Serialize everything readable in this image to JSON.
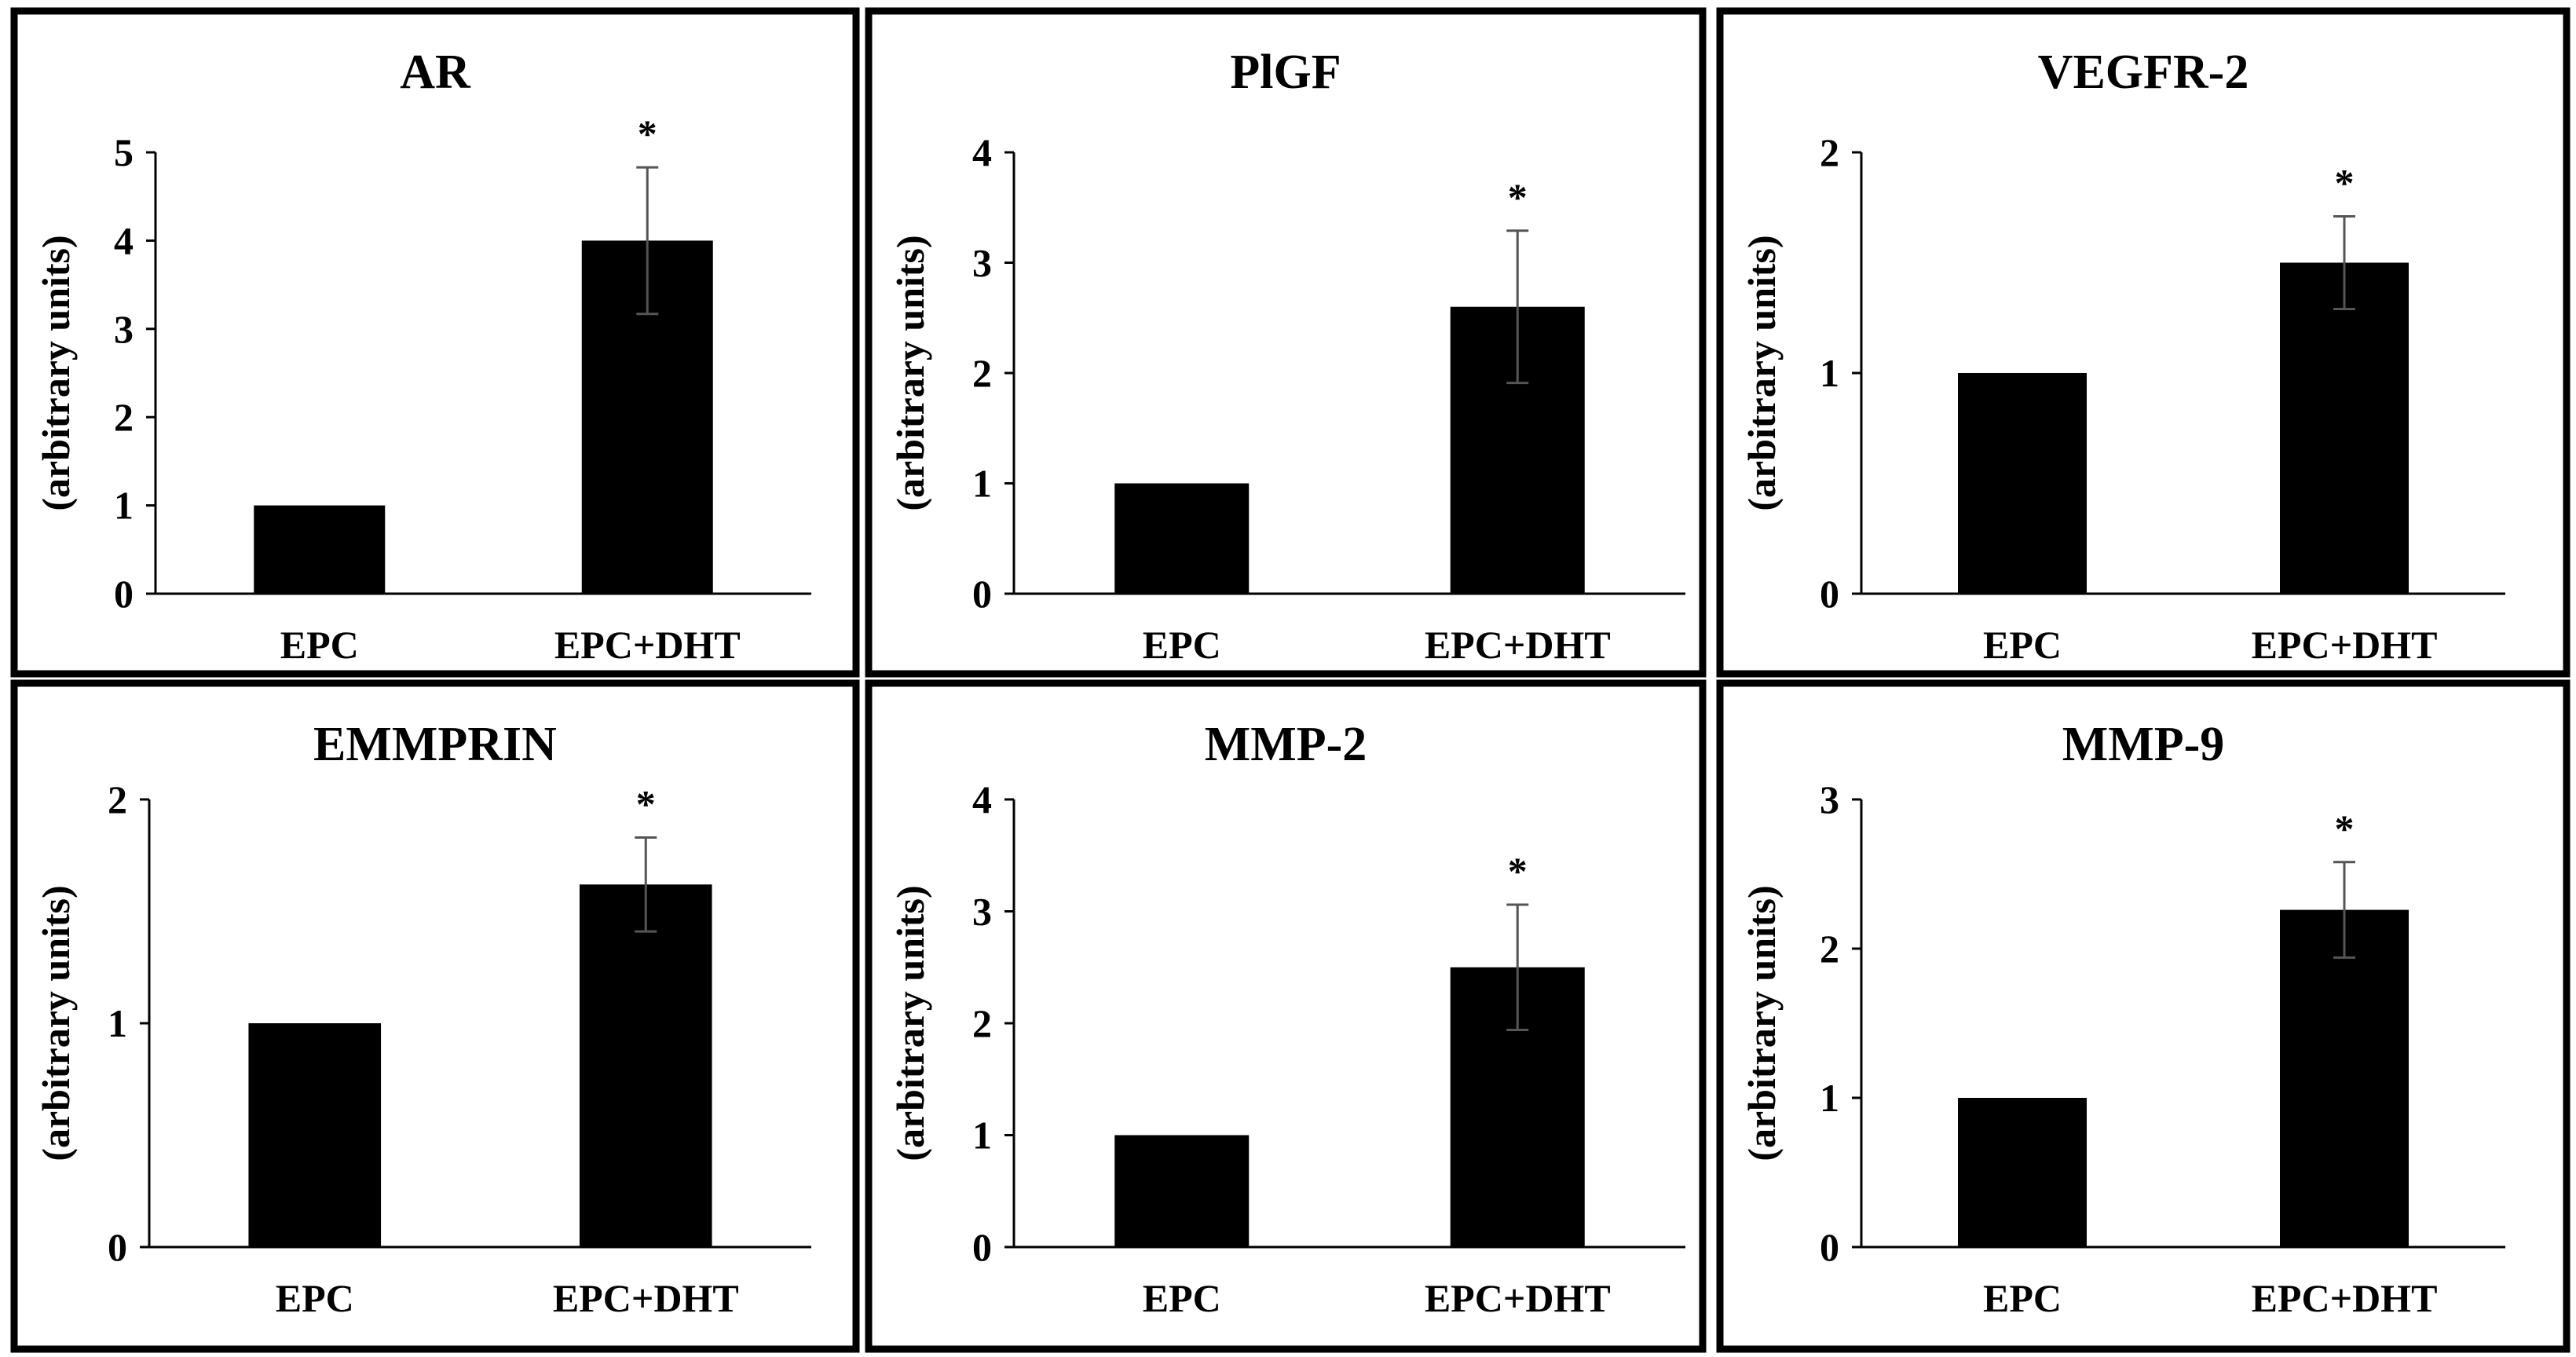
{
  "figure": {
    "background": "#ffffff",
    "bar_color": "#000000",
    "error_bar_color": "#555555"
  },
  "chart_data": [
    {
      "type": "bar",
      "title": "AR",
      "ylabel": "(arbitrary units)",
      "categories": [
        "EPC",
        "EPC+DHT"
      ],
      "values": [
        1.0,
        4.0
      ],
      "errors": [
        0,
        0.83
      ],
      "significance": [
        "",
        "*"
      ],
      "ylim": [
        0,
        5
      ],
      "yticks": [
        0,
        1,
        2,
        3,
        4,
        5
      ]
    },
    {
      "type": "bar",
      "title": "PlGF",
      "ylabel": "(arbitrary units)",
      "categories": [
        "EPC",
        "EPC+DHT"
      ],
      "values": [
        1.0,
        2.6
      ],
      "errors": [
        0,
        0.69
      ],
      "significance": [
        "",
        "*"
      ],
      "ylim": [
        0,
        4
      ],
      "yticks": [
        0,
        1,
        2,
        3,
        4
      ]
    },
    {
      "type": "bar",
      "title": "VEGFR-2",
      "ylabel": "(arbitrary units)",
      "categories": [
        "EPC",
        "EPC+DHT"
      ],
      "values": [
        1.0,
        1.5
      ],
      "errors": [
        0,
        0.21
      ],
      "significance": [
        "",
        "*"
      ],
      "ylim": [
        0,
        2
      ],
      "yticks": [
        0,
        1,
        2
      ]
    },
    {
      "type": "bar",
      "title": "EMMPRIN",
      "ylabel": "(arbitrary units)",
      "categories": [
        "EPC",
        "EPC+DHT"
      ],
      "values": [
        1.0,
        1.62
      ],
      "errors": [
        0,
        0.21
      ],
      "significance": [
        "",
        "*"
      ],
      "ylim": [
        0,
        2
      ],
      "yticks": [
        0,
        1,
        2
      ]
    },
    {
      "type": "bar",
      "title": "MMP-2",
      "ylabel": "(arbitrary units)",
      "categories": [
        "EPC",
        "EPC+DHT"
      ],
      "values": [
        1.0,
        2.5
      ],
      "errors": [
        0,
        0.56
      ],
      "significance": [
        "",
        "*"
      ],
      "ylim": [
        0,
        4
      ],
      "yticks": [
        0,
        1,
        2,
        3,
        4
      ]
    },
    {
      "type": "bar",
      "title": "MMP-9",
      "ylabel": "(arbitrary units)",
      "categories": [
        "EPC",
        "EPC+DHT"
      ],
      "values": [
        1.0,
        2.26
      ],
      "errors": [
        0,
        0.32
      ],
      "significance": [
        "",
        "*"
      ],
      "ylim": [
        0,
        3
      ],
      "yticks": [
        0,
        1,
        2,
        3
      ]
    }
  ]
}
